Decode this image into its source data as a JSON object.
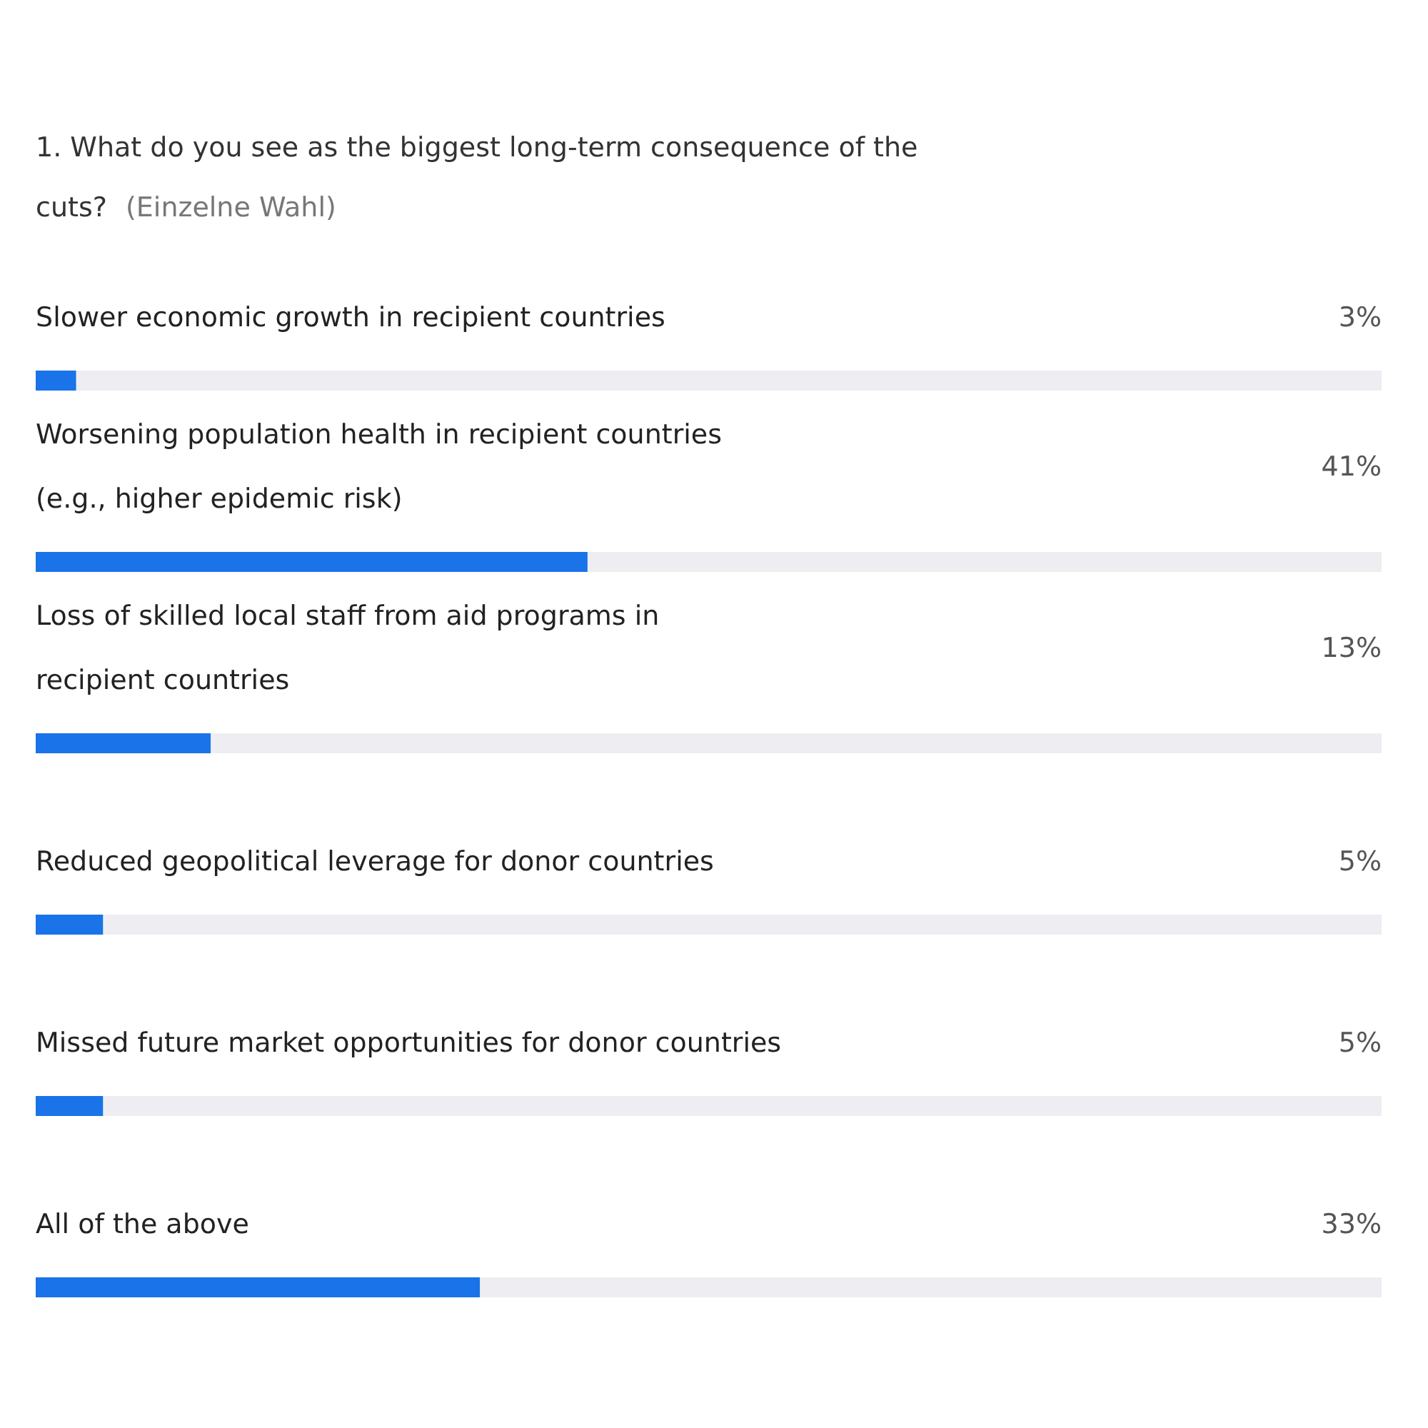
{
  "chart_data": {
    "type": "bar",
    "orientation": "horizontal",
    "title": "1. What do you see as the biggest long-term consequence of the cuts?",
    "subtitle": "(Einzelne Wahl)",
    "categories": [
      "Slower economic growth in recipient countries",
      "Worsening population health in recipient countries (e.g., higher epidemic risk)",
      "Loss of skilled local staff from aid programs in recipient countries",
      "Reduced geopolitical leverage for donor countries",
      "Missed future market opportunities for donor countries",
      "All of the above"
    ],
    "values": [
      3,
      41,
      13,
      5,
      5,
      33
    ],
    "value_labels": [
      "3%",
      "41%",
      "13%",
      "5%",
      "5%",
      "33%"
    ],
    "color": "#1a73e8",
    "xlim": [
      0,
      100
    ]
  }
}
